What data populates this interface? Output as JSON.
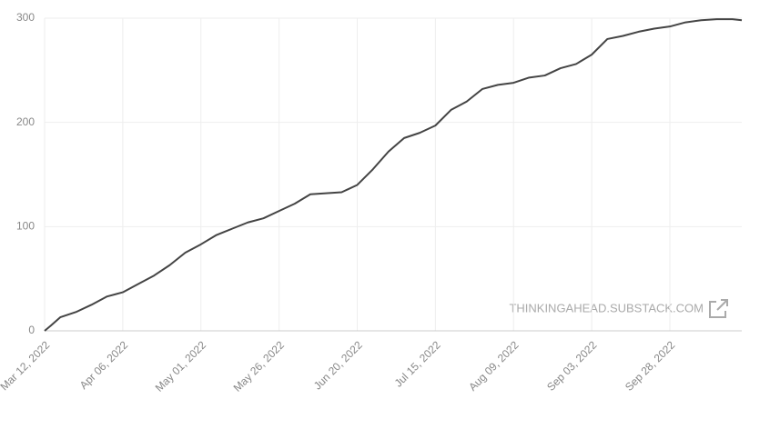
{
  "chart_data": {
    "type": "line",
    "watermark": "THINKINGAHEAD.SUBSTACK.COM",
    "x": [
      "2022-03-12",
      "2022-03-14",
      "2022-03-17",
      "2022-03-22",
      "2022-03-27",
      "2022-04-01",
      "2022-04-06",
      "2022-04-11",
      "2022-04-16",
      "2022-04-21",
      "2022-04-26",
      "2022-05-01",
      "2022-05-06",
      "2022-05-11",
      "2022-05-16",
      "2022-05-21",
      "2022-05-26",
      "2022-05-31",
      "2022-06-05",
      "2022-06-10",
      "2022-06-15",
      "2022-06-20",
      "2022-06-25",
      "2022-06-30",
      "2022-07-05",
      "2022-07-10",
      "2022-07-15",
      "2022-07-20",
      "2022-07-25",
      "2022-07-30",
      "2022-08-04",
      "2022-08-09",
      "2022-08-14",
      "2022-08-19",
      "2022-08-24",
      "2022-08-29",
      "2022-09-03",
      "2022-09-08",
      "2022-09-13",
      "2022-09-18",
      "2022-09-23",
      "2022-09-28",
      "2022-10-03",
      "2022-10-08",
      "2022-10-13",
      "2022-10-18",
      "2022-10-21"
    ],
    "series": [
      {
        "color": "#444444",
        "values": [
          0,
          5,
          13,
          18,
          25,
          33,
          37,
          45,
          53,
          63,
          75,
          83,
          92,
          98,
          104,
          108,
          115,
          122,
          131,
          132,
          133,
          140,
          155,
          172,
          185,
          190,
          197,
          212,
          220,
          232,
          236,
          238,
          243,
          245,
          252,
          256,
          265,
          280,
          283,
          287,
          290,
          292,
          296,
          298,
          299,
          299,
          298
        ]
      }
    ],
    "xlim": [
      "2022-03-12",
      "2022-10-21"
    ],
    "xticks": [
      {
        "value": "2022-03-12",
        "label": "Mar 12, 2022"
      },
      {
        "value": "2022-04-06",
        "label": "Apr 06, 2022"
      },
      {
        "value": "2022-05-01",
        "label": "May 01, 2022"
      },
      {
        "value": "2022-05-26",
        "label": "May 26, 2022"
      },
      {
        "value": "2022-06-20",
        "label": "Jun 20, 2022"
      },
      {
        "value": "2022-07-15",
        "label": "Jul 15, 2022"
      },
      {
        "value": "2022-08-09",
        "label": "Aug 09, 2022"
      },
      {
        "value": "2022-09-03",
        "label": "Sep 03, 2022"
      },
      {
        "value": "2022-09-28",
        "label": "Sep 28, 2022"
      }
    ],
    "ylim": [
      0,
      300
    ],
    "yticks": [
      0,
      100,
      200,
      300
    ],
    "grid": true
  }
}
